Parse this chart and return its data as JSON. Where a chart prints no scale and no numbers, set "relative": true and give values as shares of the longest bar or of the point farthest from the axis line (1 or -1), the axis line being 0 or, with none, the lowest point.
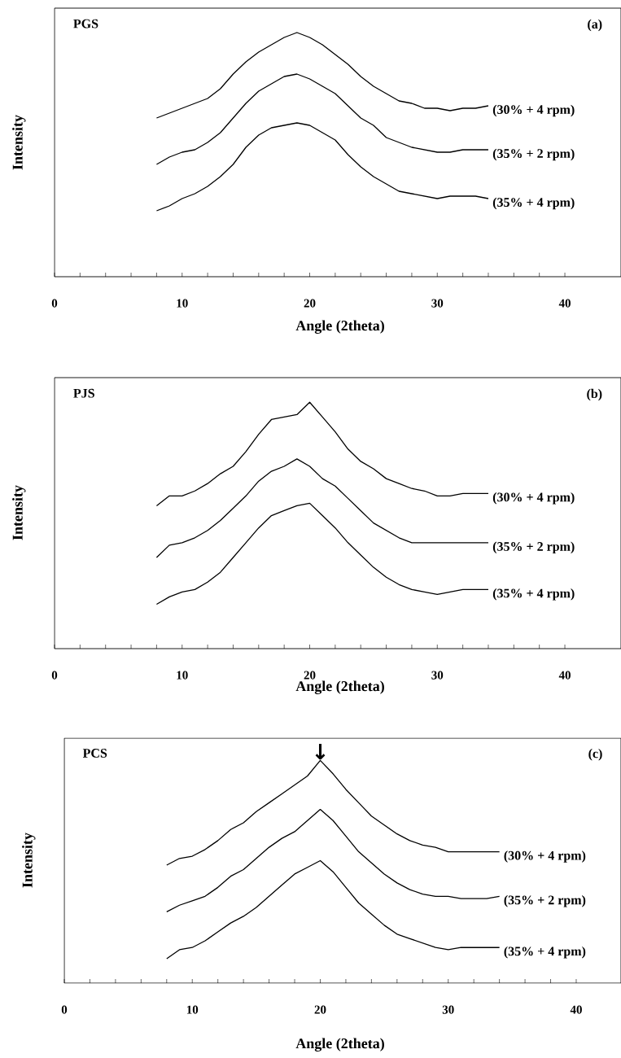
{
  "chart_data": [
    {
      "type": "line",
      "title": "PGS",
      "xlabel": "Angle (2theta)",
      "ylabel": "Intensity",
      "relative": true,
      "xlim": [
        0,
        44.4
      ],
      "xticks": [
        0,
        10,
        20,
        30,
        40
      ],
      "marker": "none",
      "line_style": "solid",
      "annotations": [
        "(a)"
      ],
      "x": [
        8,
        9,
        10,
        11,
        12,
        13,
        14,
        15,
        16,
        17,
        18,
        19,
        20,
        21,
        22,
        23,
        24,
        25,
        26,
        27,
        28,
        29,
        30,
        31,
        32,
        33,
        34
      ],
      "series": [
        {
          "name": "(30% + 4 rpm)",
          "color": "#000000",
          "values": [
            0.65,
            0.67,
            0.69,
            0.71,
            0.73,
            0.77,
            0.83,
            0.88,
            0.92,
            0.95,
            0.98,
            1.0,
            0.98,
            0.95,
            0.91,
            0.87,
            0.82,
            0.78,
            0.75,
            0.72,
            0.71,
            0.69,
            0.69,
            0.68,
            0.69,
            0.69,
            0.7
          ]
        },
        {
          "name": "(35% + 2 rpm)",
          "color": "#000000",
          "values": [
            0.46,
            0.49,
            0.51,
            0.52,
            0.55,
            0.59,
            0.65,
            0.71,
            0.76,
            0.79,
            0.82,
            0.83,
            0.81,
            0.78,
            0.75,
            0.7,
            0.65,
            0.62,
            0.57,
            0.55,
            0.53,
            0.52,
            0.51,
            0.51,
            0.52,
            0.52,
            0.52
          ]
        },
        {
          "name": "(35% + 4 rpm)",
          "color": "#000000",
          "values": [
            0.27,
            0.29,
            0.32,
            0.34,
            0.37,
            0.41,
            0.46,
            0.53,
            0.58,
            0.61,
            0.62,
            0.63,
            0.62,
            0.59,
            0.56,
            0.5,
            0.45,
            0.41,
            0.38,
            0.35,
            0.34,
            0.33,
            0.32,
            0.33,
            0.33,
            0.33,
            0.32
          ]
        }
      ]
    },
    {
      "type": "line",
      "title": "PJS",
      "xlabel": "Angle (2theta)",
      "ylabel": "Intensity",
      "relative": true,
      "xlim": [
        0,
        44.4
      ],
      "xticks": [
        0,
        10,
        20,
        30,
        40
      ],
      "marker": "none",
      "line_style": "solid",
      "annotations": [
        "(b)"
      ],
      "x": [
        8,
        9,
        10,
        11,
        12,
        13,
        14,
        15,
        16,
        17,
        18,
        19,
        20,
        21,
        22,
        23,
        24,
        25,
        26,
        27,
        28,
        29,
        30,
        31,
        32,
        33,
        34
      ],
      "series": [
        {
          "name": "(30% + 4 rpm)",
          "color": "#000000",
          "values": [
            0.58,
            0.62,
            0.62,
            0.64,
            0.67,
            0.71,
            0.74,
            0.8,
            0.87,
            0.93,
            0.94,
            0.95,
            1.0,
            0.94,
            0.88,
            0.81,
            0.76,
            0.73,
            0.69,
            0.67,
            0.65,
            0.64,
            0.62,
            0.62,
            0.63,
            0.63,
            0.63
          ]
        },
        {
          "name": "(35% + 2 rpm)",
          "color": "#000000",
          "values": [
            0.37,
            0.42,
            0.43,
            0.45,
            0.48,
            0.52,
            0.57,
            0.62,
            0.68,
            0.72,
            0.74,
            0.77,
            0.74,
            0.69,
            0.66,
            0.61,
            0.56,
            0.51,
            0.48,
            0.45,
            0.43,
            0.43,
            0.43,
            0.43,
            0.43,
            0.43,
            0.43
          ]
        },
        {
          "name": "(35% + 4 rpm)",
          "color": "#000000",
          "values": [
            0.18,
            0.21,
            0.23,
            0.24,
            0.27,
            0.31,
            0.37,
            0.43,
            0.49,
            0.54,
            0.56,
            0.58,
            0.59,
            0.54,
            0.49,
            0.43,
            0.38,
            0.33,
            0.29,
            0.26,
            0.24,
            0.23,
            0.22,
            0.23,
            0.24,
            0.24,
            0.24
          ]
        }
      ]
    },
    {
      "type": "line",
      "title": "PCS",
      "xlabel": "Angle (2theta)",
      "ylabel": "Intensity",
      "relative": true,
      "xlim": [
        0,
        43.5
      ],
      "xticks": [
        0,
        10,
        20,
        30,
        40
      ],
      "marker": "none",
      "line_style": "solid",
      "annotations": [
        "(c)",
        {
          "text": "↓",
          "x": 20,
          "y": 1.0
        }
      ],
      "x": [
        8,
        9,
        10,
        11,
        12,
        13,
        14,
        15,
        16,
        17,
        18,
        19,
        20,
        21,
        22,
        23,
        24,
        25,
        26,
        27,
        28,
        29,
        30,
        31,
        32,
        33,
        34
      ],
      "series": [
        {
          "name": "(30% + 4 rpm)",
          "color": "#000000",
          "values": [
            0.53,
            0.56,
            0.57,
            0.6,
            0.64,
            0.69,
            0.72,
            0.77,
            0.81,
            0.85,
            0.89,
            0.93,
            1.0,
            0.94,
            0.87,
            0.81,
            0.75,
            0.71,
            0.67,
            0.64,
            0.62,
            0.61,
            0.59,
            0.59,
            0.59,
            0.59,
            0.59
          ]
        },
        {
          "name": "(35% + 2 rpm)",
          "color": "#000000",
          "values": [
            0.32,
            0.35,
            0.37,
            0.39,
            0.43,
            0.48,
            0.51,
            0.56,
            0.61,
            0.65,
            0.68,
            0.73,
            0.78,
            0.73,
            0.66,
            0.59,
            0.54,
            0.49,
            0.45,
            0.42,
            0.4,
            0.39,
            0.39,
            0.38,
            0.38,
            0.38,
            0.39
          ]
        },
        {
          "name": "(35% + 4 rpm)",
          "color": "#000000",
          "values": [
            0.11,
            0.15,
            0.16,
            0.19,
            0.23,
            0.27,
            0.3,
            0.34,
            0.39,
            0.44,
            0.49,
            0.52,
            0.55,
            0.5,
            0.43,
            0.36,
            0.31,
            0.26,
            0.22,
            0.2,
            0.18,
            0.16,
            0.15,
            0.16,
            0.16,
            0.16,
            0.16
          ]
        }
      ]
    }
  ]
}
